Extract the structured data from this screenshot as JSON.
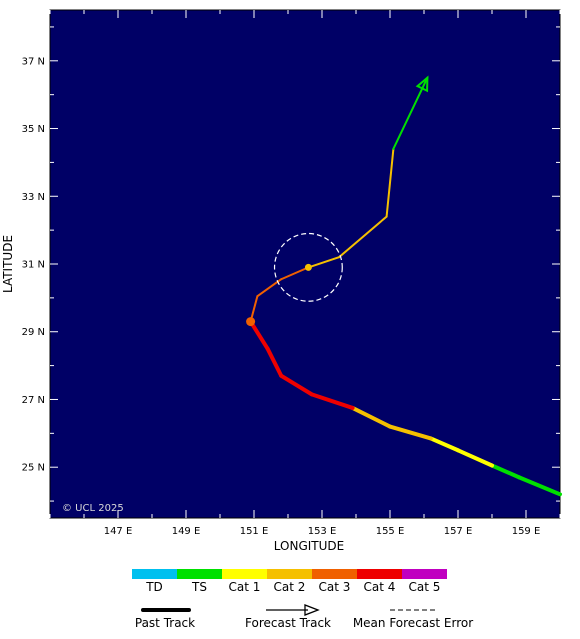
{
  "axes": {
    "xlabel": "LONGITUDE",
    "ylabel": "LATITUDE",
    "xlim": [
      145,
      160
    ],
    "ylim": [
      23.5,
      38.5
    ],
    "xticks": [
      {
        "v": 147,
        "label": "147 E"
      },
      {
        "v": 149,
        "label": "149 E"
      },
      {
        "v": 151,
        "label": "151 E"
      },
      {
        "v": 153,
        "label": "153 E"
      },
      {
        "v": 155,
        "label": "155 E"
      },
      {
        "v": 157,
        "label": "157 E"
      },
      {
        "v": 159,
        "label": "159 E"
      }
    ],
    "yticks": [
      {
        "v": 25,
        "label": "25 N"
      },
      {
        "v": 27,
        "label": "27 N"
      },
      {
        "v": 29,
        "label": "29 N"
      },
      {
        "v": 31,
        "label": "31 N"
      },
      {
        "v": 33,
        "label": "33 N"
      },
      {
        "v": 35,
        "label": "35 N"
      },
      {
        "v": 37,
        "label": "37 N"
      }
    ]
  },
  "copyright": "© UCL 2025",
  "colors": {
    "ocean": "#000066",
    "TD": "#00c0ef",
    "TS": "#00e000",
    "Cat 1": "#ffff00",
    "Cat 2": "#f5c000",
    "Cat 3": "#f06000",
    "Cat 4": "#ee0000",
    "Cat 5": "#c000c0"
  },
  "chart_data": {
    "type": "line",
    "past_track": [
      {
        "lon": 160.0,
        "lat": 24.2,
        "cat": "TS"
      },
      {
        "lon": 158.8,
        "lat": 24.7,
        "cat": "TS"
      },
      {
        "lon": 158.0,
        "lat": 25.05,
        "cat": "Cat 1"
      },
      {
        "lon": 157.0,
        "lat": 25.5,
        "cat": "Cat 1"
      },
      {
        "lon": 156.2,
        "lat": 25.85,
        "cat": "Cat 2"
      },
      {
        "lon": 155.0,
        "lat": 26.2,
        "cat": "Cat 2"
      },
      {
        "lon": 153.9,
        "lat": 26.75,
        "cat": "Cat 4"
      },
      {
        "lon": 152.7,
        "lat": 27.15,
        "cat": "Cat 4"
      },
      {
        "lon": 151.8,
        "lat": 27.7,
        "cat": "Cat 4"
      },
      {
        "lon": 151.4,
        "lat": 28.5,
        "cat": "Cat 4"
      },
      {
        "lon": 150.9,
        "lat": 29.3,
        "cat": "Cat 4"
      }
    ],
    "current_position": {
      "lon": 150.9,
      "lat": 29.3,
      "cat": "Cat 3"
    },
    "forecast_track": [
      {
        "lon": 150.9,
        "lat": 29.3,
        "cat": "Cat 3"
      },
      {
        "lon": 151.1,
        "lat": 30.05,
        "cat": "Cat 3"
      },
      {
        "lon": 151.8,
        "lat": 30.55,
        "cat": "Cat 3"
      },
      {
        "lon": 152.6,
        "lat": 30.9,
        "cat": "Cat 2"
      },
      {
        "lon": 153.5,
        "lat": 31.2,
        "cat": "Cat 2"
      },
      {
        "lon": 154.9,
        "lat": 32.4,
        "cat": "Cat 2"
      },
      {
        "lon": 155.1,
        "lat": 34.4,
        "cat": "TS"
      },
      {
        "lon": 156.1,
        "lat": 36.5,
        "cat": "TS"
      }
    ],
    "forecast_position": {
      "lon": 152.6,
      "lat": 30.9,
      "cat": "Cat 2"
    },
    "mean_error_circle": {
      "lon": 152.6,
      "lat": 30.9,
      "radius_deg_lat": 1.0
    }
  },
  "legend": {
    "categories": [
      "TD",
      "TS",
      "Cat 1",
      "Cat 2",
      "Cat 3",
      "Cat 4",
      "Cat 5"
    ],
    "past_track_label": "Past Track",
    "forecast_track_label": "Forecast Track",
    "error_label": "Mean Forecast Error"
  }
}
